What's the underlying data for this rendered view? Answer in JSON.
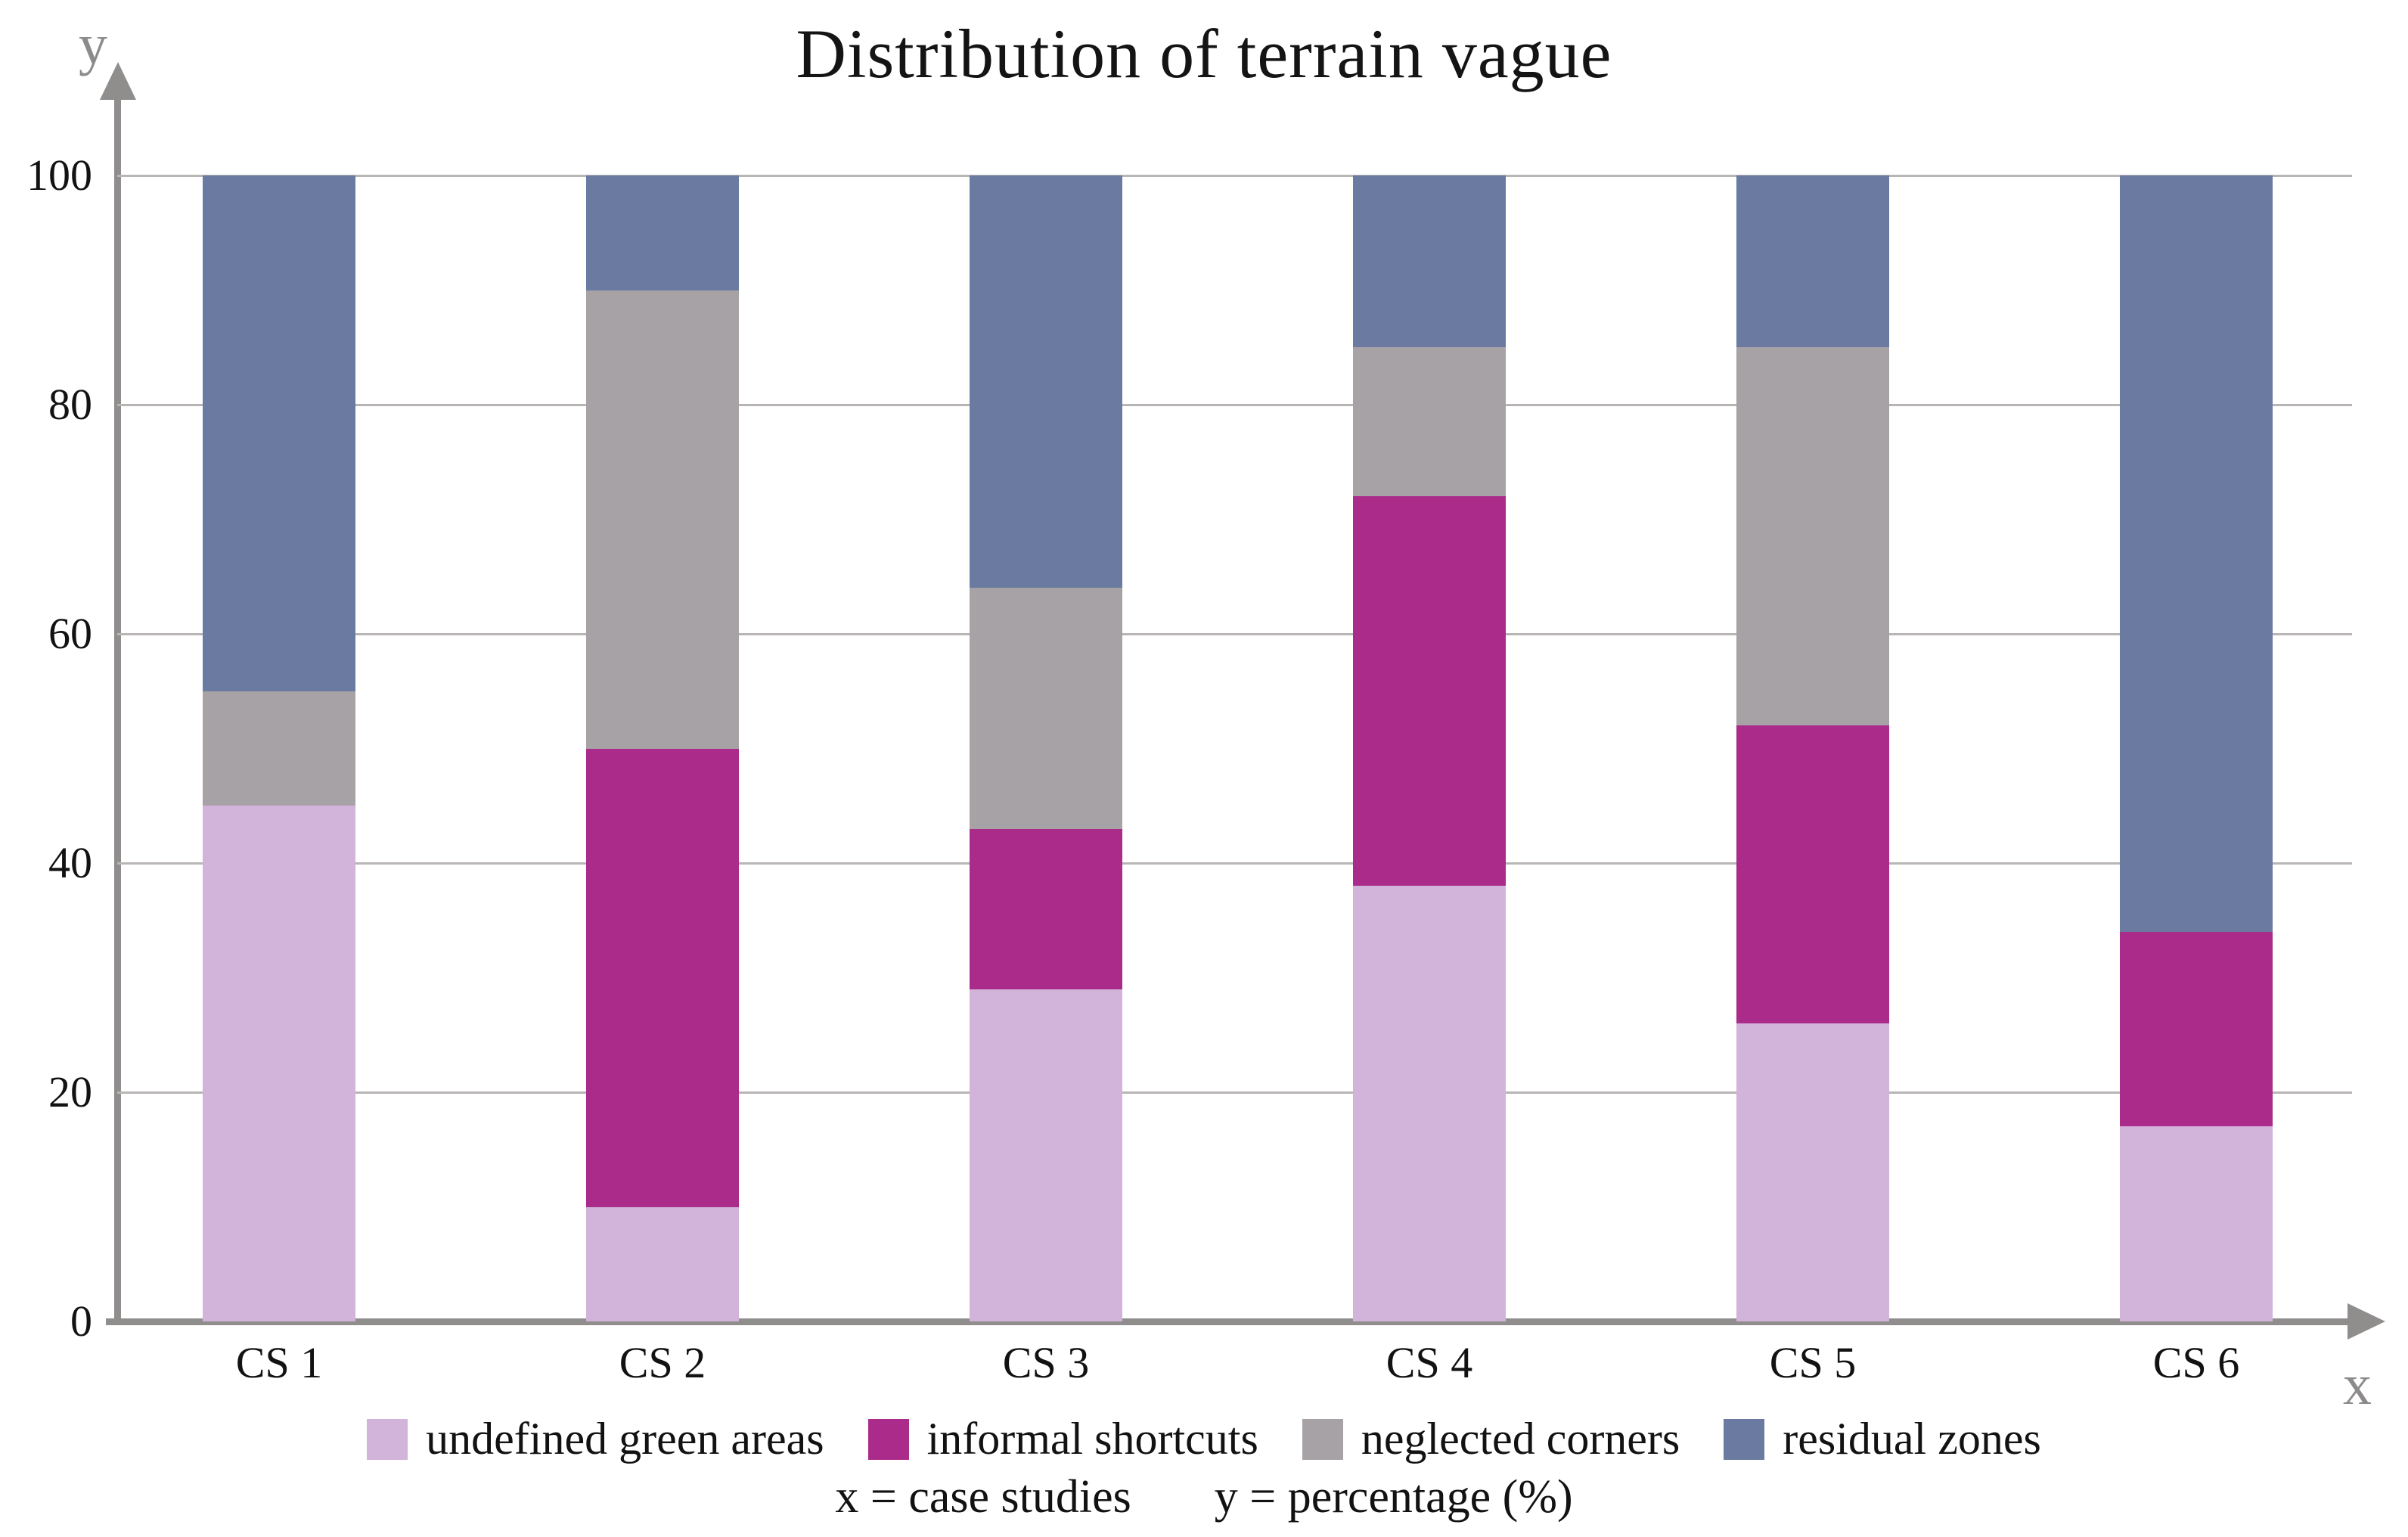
{
  "title": "Distribution of terrain vague",
  "axes": {
    "x_letter": "x",
    "y_letter": "y"
  },
  "caption": {
    "x_part": "x = case studies",
    "y_part": "y = percentage (%)"
  },
  "colors": {
    "axis": "#908d8d",
    "gridline": "#b9b5b5",
    "text": "#121212",
    "axis_letters": "#8d8a8a"
  },
  "chart_data": {
    "type": "bar",
    "stacked": true,
    "title": "Distribution of terrain vague",
    "categories": [
      "CS 1",
      "CS 2",
      "CS 3",
      "CS 4",
      "CS 5",
      "CS 6"
    ],
    "series": [
      {
        "name": "undefined green areas",
        "color": "#d2b3da",
        "values": [
          45,
          10,
          29,
          38,
          26,
          17
        ]
      },
      {
        "name": "informal shortcuts",
        "color": "#aa2b8a",
        "values": [
          0,
          40,
          14,
          34,
          26,
          17
        ]
      },
      {
        "name": "neglected corners",
        "color": "#a7a2a6",
        "values": [
          10,
          40,
          21,
          13,
          33,
          0
        ]
      },
      {
        "name": "residual zones",
        "color": "#6a7aa0",
        "values": [
          45,
          10,
          36,
          15,
          15,
          66
        ]
      }
    ],
    "xlabel": "x = case studies",
    "ylabel": "y = percentage (%)",
    "yticks": [
      0,
      20,
      40,
      60,
      80,
      100
    ],
    "ylim": [
      0,
      100
    ],
    "grid": true,
    "legend_position": "bottom"
  }
}
